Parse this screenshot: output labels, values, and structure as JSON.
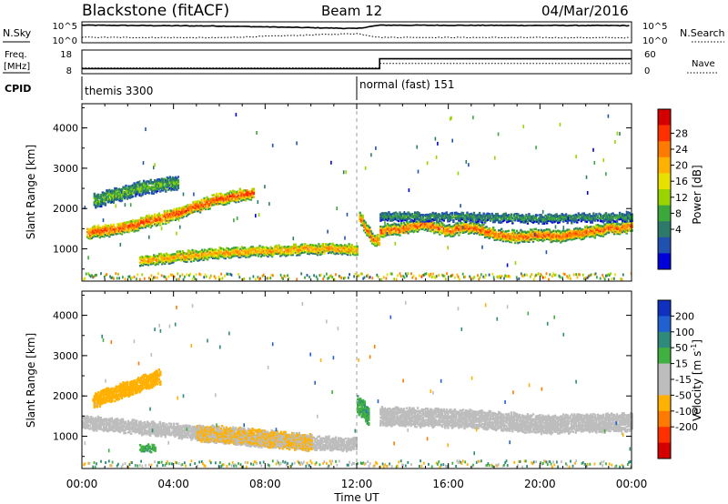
{
  "header": {
    "site_title": "Blackstone (fitACF)",
    "beam_label": "Beam 12",
    "date_label": "04/Mar/2016"
  },
  "panels": {
    "nsky_label": "N.Sky",
    "nsearch_label": "N.Search",
    "freq_label_1": "Freq.",
    "freq_label_2": "[MHz]",
    "nave_label": "Nave",
    "cpid_label": "CPID",
    "cpid_values": [
      "themis 3300",
      "normal (fast) 151"
    ],
    "noise_left_ticks": [
      "10^5",
      "10^0"
    ],
    "noise_right_ticks": [
      "10^5",
      "10^0"
    ],
    "freq_left_ticks": [
      "18",
      "8"
    ],
    "freq_right_ticks": [
      "60",
      "0"
    ]
  },
  "power_colorbar": {
    "title": "Power [dB]",
    "tick_labels": [
      "28",
      "24",
      "20",
      "16",
      "12",
      "8",
      "4"
    ],
    "colors": [
      "#d40000",
      "#ff3000",
      "#ff7a00",
      "#ffb000",
      "#e8e000",
      "#9ad400",
      "#3ca83c",
      "#2e7a6a",
      "#2050b0",
      "#0000d8"
    ]
  },
  "velocity_colorbar": {
    "title_prefix": "Velocity [m s",
    "title_exp": "-1",
    "title_suffix": "]",
    "tick_labels": [
      "200",
      "100",
      "50",
      "15",
      "-15",
      "-50",
      "-100",
      "-200"
    ],
    "colors": [
      "#1030c0",
      "#2060d0",
      "#2e8a7a",
      "#40b040",
      "#bdbdbd",
      "#bdbdbd",
      "#ffb000",
      "#ff7a00",
      "#ff3000",
      "#d40000"
    ]
  },
  "axes": {
    "ylabel": "Slant Range [km]",
    "xlabel": "Time UT",
    "y_tick_labels": [
      "4000",
      "3000",
      "2000",
      "1000"
    ],
    "x_tick_labels": [
      "00:00",
      "04:00",
      "08:00",
      "12:00",
      "16:00",
      "20:00",
      "00:00"
    ]
  },
  "chart_data": [
    {
      "type": "line",
      "title": "N.Sky / N.Search",
      "x_unit": "hours UT",
      "series": [
        {
          "name": "N.Sky",
          "style": "solid",
          "x": [
            0,
            6,
            12,
            13,
            24
          ],
          "log10_value": [
            4.2,
            4.0,
            3.4,
            4.2,
            4.1
          ]
        },
        {
          "name": "N.Search",
          "style": "dotted",
          "x": [
            0,
            6,
            12,
            13,
            24
          ],
          "log10_value": [
            1.3,
            1.2,
            2.2,
            1.3,
            1.2
          ]
        }
      ]
    },
    {
      "type": "line",
      "title": "Freq. / Nave",
      "series": [
        {
          "name": "Freq. [MHz]",
          "x": [
            0,
            13,
            13,
            24
          ],
          "values": [
            10,
            10,
            16,
            16
          ]
        },
        {
          "name": "Nave",
          "x": [
            0,
            13,
            13,
            24
          ],
          "values": [
            14,
            14,
            31,
            31
          ]
        }
      ],
      "cpid": [
        {
          "start_hour": 0,
          "value": "themis 3300"
        },
        {
          "start_hour": 12,
          "value": "normal (fast) 151"
        }
      ]
    },
    {
      "type": "heatmap",
      "title": "Power [dB]",
      "xlim": [
        0,
        24
      ],
      "ylim": [
        200,
        4600
      ],
      "colorbar_range": [
        0,
        32
      ],
      "bands": [
        {
          "x": [
            0.2,
            1,
            2,
            3,
            4,
            5,
            6,
            7,
            7.5
          ],
          "y": [
            1400,
            1450,
            1550,
            1700,
            1850,
            2050,
            2250,
            2350,
            2400
          ],
          "width": 260,
          "power_db": 26
        },
        {
          "x": [
            0.5,
            1.5,
            2.5,
            3.5,
            4.2
          ],
          "y": [
            2200,
            2350,
            2500,
            2600,
            2650
          ],
          "width": 300,
          "power_db": 12
        },
        {
          "x": [
            2.5,
            4,
            6,
            8,
            10,
            11.5,
            12
          ],
          "y": [
            700,
            800,
            900,
            950,
            1000,
            1000,
            950
          ],
          "width": 220,
          "power_db": 22
        },
        {
          "x": [
            12.1,
            12.6,
            13
          ],
          "y": [
            1800,
            1300,
            1150
          ],
          "width": 250,
          "power_db": 24
        },
        {
          "x": [
            13,
            14,
            15,
            16,
            17,
            18,
            19,
            20,
            21,
            22,
            23,
            24
          ],
          "y": [
            1450,
            1500,
            1600,
            1450,
            1550,
            1350,
            1300,
            1350,
            1300,
            1400,
            1500,
            1550
          ],
          "width": 240,
          "power_db": 25
        },
        {
          "x": [
            13,
            16,
            20,
            24
          ],
          "y": [
            1800,
            1800,
            1750,
            1800
          ],
          "width": 180,
          "power_db": 10
        }
      ]
    },
    {
      "type": "heatmap",
      "title": "Velocity [m s^-1]",
      "xlim": [
        0,
        24
      ],
      "ylim": [
        200,
        4600
      ],
      "colorbar_range": [
        -250,
        250
      ],
      "bands": [
        {
          "x": [
            0,
            2,
            4,
            6,
            8,
            10,
            12
          ],
          "y": [
            1350,
            1250,
            1150,
            1000,
            900,
            850,
            800
          ],
          "width": 300,
          "velocity": 0
        },
        {
          "x": [
            0.5,
            1.5,
            2.5,
            3.4
          ],
          "y": [
            1900,
            2100,
            2300,
            2500
          ],
          "width": 350,
          "velocity": -80
        },
        {
          "x": [
            5,
            6,
            7,
            8,
            9,
            10
          ],
          "y": [
            1100,
            1050,
            1000,
            950,
            900,
            850
          ],
          "width": 380,
          "velocity": -50
        },
        {
          "x": [
            2.5,
            3.2
          ],
          "y": [
            700,
            700
          ],
          "width": 120,
          "velocity": 40
        },
        {
          "x": [
            12,
            12.5
          ],
          "y": [
            1800,
            1500
          ],
          "width": 400,
          "velocity": 40
        },
        {
          "x": [
            13,
            16,
            18,
            20,
            24
          ],
          "y": [
            1500,
            1450,
            1400,
            1300,
            1350
          ],
          "width": 420,
          "velocity": 0
        }
      ]
    }
  ]
}
